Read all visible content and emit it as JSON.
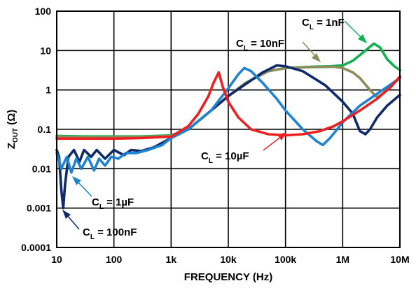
{
  "chart_data": {
    "type": "line",
    "title": "",
    "xlabel": "FREQUENCY (Hz)",
    "ylabel_main": "Z",
    "ylabel_sub": "OUT",
    "ylabel_unit": " (Ω)",
    "x_scale": "log",
    "y_scale": "log",
    "xlim": [
      10,
      10000000
    ],
    "ylim": [
      0.0001,
      100
    ],
    "grid": true,
    "x_ticks": [
      {
        "value": 10,
        "label": "10"
      },
      {
        "value": 100,
        "label": "100"
      },
      {
        "value": 1000,
        "label": "1k"
      },
      {
        "value": 10000,
        "label": "10k"
      },
      {
        "value": 100000,
        "label": "100k"
      },
      {
        "value": 1000000,
        "label": "1M"
      },
      {
        "value": 10000000,
        "label": "10M"
      }
    ],
    "y_ticks": [
      {
        "value": 0.0001,
        "label": "0.0001"
      },
      {
        "value": 0.001,
        "label": "0.001"
      },
      {
        "value": 0.01,
        "label": "0.01"
      },
      {
        "value": 0.1,
        "label": "0.1"
      },
      {
        "value": 1,
        "label": "1"
      },
      {
        "value": 10,
        "label": "10"
      },
      {
        "value": 100,
        "label": "100"
      }
    ],
    "series": [
      {
        "name_main": "C",
        "name_sub": "L",
        "name_value": " = 1nF",
        "color": "#10b050",
        "points": [
          [
            10,
            0.068
          ],
          [
            30,
            0.066
          ],
          [
            100,
            0.066
          ],
          [
            300,
            0.066
          ],
          [
            1000,
            0.07
          ],
          [
            2000,
            0.1
          ],
          [
            5000,
            0.3
          ],
          [
            10000,
            0.7
          ],
          [
            20000,
            1.5
          ],
          [
            50000,
            3.0
          ],
          [
            100000,
            3.6
          ],
          [
            300000,
            3.9
          ],
          [
            600000,
            4.0
          ],
          [
            1000000,
            4.2
          ],
          [
            1500000,
            5.5
          ],
          [
            2500000,
            10.0
          ],
          [
            3500000,
            15.0
          ],
          [
            4500000,
            12.0
          ],
          [
            6000000,
            6.0
          ],
          [
            8000000,
            4.0
          ],
          [
            10000000,
            3.2
          ]
        ]
      },
      {
        "name_main": "C",
        "name_sub": "L",
        "name_value": " = 10nF",
        "color": "#8c8c5c",
        "points": [
          [
            10,
            0.065
          ],
          [
            30,
            0.062
          ],
          [
            100,
            0.063
          ],
          [
            300,
            0.064
          ],
          [
            1000,
            0.068
          ],
          [
            2000,
            0.1
          ],
          [
            5000,
            0.3
          ],
          [
            10000,
            0.7
          ],
          [
            20000,
            1.5
          ],
          [
            50000,
            3.0
          ],
          [
            100000,
            3.6
          ],
          [
            300000,
            3.8
          ],
          [
            700000,
            3.9
          ],
          [
            1000000,
            3.6
          ],
          [
            1500000,
            2.8
          ],
          [
            2000000,
            2.0
          ],
          [
            3000000,
            1.0
          ],
          [
            4000000,
            0.65
          ],
          [
            5000000,
            0.8
          ],
          [
            7000000,
            1.3
          ],
          [
            10000000,
            2.0
          ]
        ]
      },
      {
        "name_main": "C",
        "name_sub": "L",
        "name_value": " = 100nF",
        "color": "#102a6c",
        "points": [
          [
            10,
            0.03
          ],
          [
            11,
            0.02
          ],
          [
            12,
            0.003
          ],
          [
            13,
            0.001
          ],
          [
            14,
            0.004
          ],
          [
            16,
            0.02
          ],
          [
            20,
            0.03
          ],
          [
            25,
            0.015
          ],
          [
            30,
            0.03
          ],
          [
            40,
            0.02
          ],
          [
            50,
            0.03
          ],
          [
            70,
            0.018
          ],
          [
            100,
            0.03
          ],
          [
            150,
            0.022
          ],
          [
            200,
            0.03
          ],
          [
            300,
            0.028
          ],
          [
            500,
            0.035
          ],
          [
            1000,
            0.06
          ],
          [
            2000,
            0.1
          ],
          [
            5000,
            0.3
          ],
          [
            10000,
            0.7
          ],
          [
            20000,
            1.4
          ],
          [
            40000,
            2.8
          ],
          [
            70000,
            4.2
          ],
          [
            100000,
            4.0
          ],
          [
            200000,
            3.0
          ],
          [
            500000,
            1.3
          ],
          [
            1000000,
            0.5
          ],
          [
            1500000,
            0.25
          ],
          [
            2000000,
            0.09
          ],
          [
            2500000,
            0.075
          ],
          [
            3000000,
            0.1
          ],
          [
            4000000,
            0.2
          ],
          [
            6000000,
            0.4
          ],
          [
            10000000,
            0.75
          ]
        ]
      },
      {
        "name_main": "C",
        "name_sub": "L",
        "name_value": " = 1µF",
        "color": "#1e84d0",
        "points": [
          [
            10,
            0.025
          ],
          [
            12,
            0.01
          ],
          [
            15,
            0.02
          ],
          [
            18,
            0.008
          ],
          [
            22,
            0.018
          ],
          [
            27,
            0.01
          ],
          [
            35,
            0.02
          ],
          [
            45,
            0.009
          ],
          [
            55,
            0.018
          ],
          [
            70,
            0.012
          ],
          [
            90,
            0.02
          ],
          [
            120,
            0.018
          ],
          [
            160,
            0.025
          ],
          [
            250,
            0.025
          ],
          [
            400,
            0.03
          ],
          [
            700,
            0.04
          ],
          [
            1000,
            0.06
          ],
          [
            2000,
            0.1
          ],
          [
            5000,
            0.3
          ],
          [
            10000,
            1.1
          ],
          [
            15000,
            2.5
          ],
          [
            19000,
            3.6
          ],
          [
            25000,
            3.0
          ],
          [
            40000,
            1.5
          ],
          [
            70000,
            0.6
          ],
          [
            100000,
            0.3
          ],
          [
            200000,
            0.1
          ],
          [
            350000,
            0.05
          ],
          [
            450000,
            0.04
          ],
          [
            600000,
            0.06
          ],
          [
            1000000,
            0.15
          ],
          [
            2000000,
            0.4
          ],
          [
            4000000,
            0.8
          ],
          [
            10000000,
            2.0
          ]
        ]
      },
      {
        "name_main": "C",
        "name_sub": "L",
        "name_value": " = 10µF",
        "color": "#ec2020",
        "points": [
          [
            10,
            0.058
          ],
          [
            30,
            0.058
          ],
          [
            100,
            0.058
          ],
          [
            300,
            0.06
          ],
          [
            1000,
            0.065
          ],
          [
            2000,
            0.12
          ],
          [
            3000,
            0.25
          ],
          [
            4500,
            0.7
          ],
          [
            5500,
            1.5
          ],
          [
            6800,
            2.8
          ],
          [
            8000,
            1.2
          ],
          [
            10000,
            0.5
          ],
          [
            15000,
            0.2
          ],
          [
            25000,
            0.1
          ],
          [
            50000,
            0.075
          ],
          [
            100000,
            0.07
          ],
          [
            200000,
            0.075
          ],
          [
            400000,
            0.09
          ],
          [
            700000,
            0.12
          ],
          [
            1000000,
            0.16
          ],
          [
            2000000,
            0.3
          ],
          [
            4000000,
            0.6
          ],
          [
            7000000,
            1.2
          ],
          [
            10000000,
            2.2
          ]
        ]
      }
    ]
  },
  "annotations": [
    {
      "main": "C",
      "sub": "L",
      "value": " = 1nF"
    },
    {
      "main": "C",
      "sub": "L",
      "value": " = 10nF"
    },
    {
      "main": "C",
      "sub": "L",
      "value": " = 10µF"
    },
    {
      "main": "C",
      "sub": "L",
      "value": " = 1µF"
    },
    {
      "main": "C",
      "sub": "L",
      "value": " = 100nF"
    }
  ]
}
